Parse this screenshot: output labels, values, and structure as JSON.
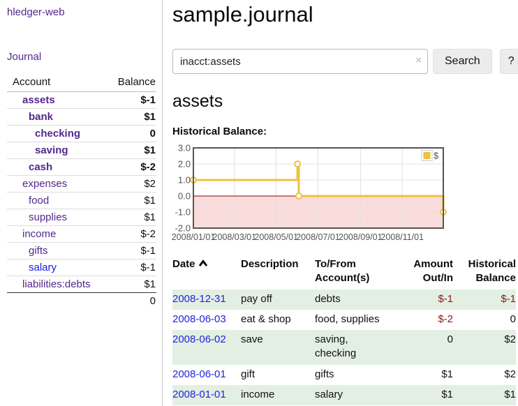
{
  "app": {
    "brand": "hledger-web"
  },
  "sidebar": {
    "nav_journal": "Journal",
    "header": {
      "account": "Account",
      "balance": "Balance"
    },
    "accounts": [
      {
        "name": "assets",
        "indent": 1,
        "bold": true,
        "balance": "$-1",
        "negative": true
      },
      {
        "name": "bank",
        "indent": 2,
        "bold": true,
        "balance": "$1",
        "negative": false
      },
      {
        "name": "checking",
        "indent": 3,
        "bold": true,
        "balance": "0",
        "negative": false
      },
      {
        "name": "saving",
        "indent": 3,
        "bold": true,
        "balance": "$1",
        "negative": false
      },
      {
        "name": "cash",
        "indent": 2,
        "bold": true,
        "balance": "$-2",
        "negative": true
      },
      {
        "name": "expenses",
        "indent": 1,
        "bold": false,
        "balance": "$2",
        "negative": false
      },
      {
        "name": "food",
        "indent": 2,
        "bold": false,
        "balance": "$1",
        "negative": false
      },
      {
        "name": "supplies",
        "indent": 2,
        "bold": false,
        "balance": "$1",
        "negative": false
      },
      {
        "name": "income",
        "indent": 1,
        "bold": false,
        "balance": "$-2",
        "negative": true
      },
      {
        "name": "gifts",
        "indent": 2,
        "bold": false,
        "balance": "$-1",
        "negative": true
      },
      {
        "name": "salary",
        "indent": 2,
        "bold": false,
        "balance": "$-1",
        "negative": true,
        "blue": true
      },
      {
        "name": "liabilities:debts",
        "indent": 1,
        "bold": false,
        "balance": "$1",
        "negative": false
      }
    ],
    "total": "0"
  },
  "header": {
    "title": "sample.journal"
  },
  "search": {
    "value": "inacct:assets",
    "clear_icon": "×",
    "button": "Search",
    "help_button": "?"
  },
  "main": {
    "account_title": "assets"
  },
  "chart_data": {
    "type": "line",
    "step": true,
    "title": "Historical Balance:",
    "legend": {
      "label": "$",
      "position": "top-right"
    },
    "series": [
      {
        "name": "$",
        "color": "#edc240",
        "points": [
          {
            "x": "2008-01-01",
            "y": 1
          },
          {
            "x": "2008-06-01",
            "y": 2
          },
          {
            "x": "2008-06-03",
            "y": 0
          },
          {
            "x": "2008-12-31",
            "y": -1
          }
        ]
      }
    ],
    "x_range": [
      "2008-01-01",
      "2008-12-31"
    ],
    "x_ticks": [
      {
        "date": "2008-01-01",
        "label": "2008/01/01"
      },
      {
        "date": "2008-03-01",
        "label": "2008/03/01"
      },
      {
        "date": "2008-05-01",
        "label": "2008/05/01"
      },
      {
        "date": "2008-07-01",
        "label": "2008/07/01"
      },
      {
        "date": "2008-09-01",
        "label": "2008/09/01"
      },
      {
        "date": "2008-11-01",
        "label": "2008/11/01"
      }
    ],
    "y_ticks": [
      {
        "v": 3,
        "label": "3.0"
      },
      {
        "v": 2,
        "label": "2.0"
      },
      {
        "v": 1,
        "label": "1.0"
      },
      {
        "v": 0,
        "label": "0.0"
      },
      {
        "v": -1,
        "label": "-1.0"
      },
      {
        "v": -2,
        "label": "-2.0"
      }
    ],
    "ylim": [
      -2,
      3
    ],
    "grid": true,
    "negative_fill": "#fadcdc",
    "zero_line_color": "#8b0000",
    "grid_color": "#e0e0e0",
    "border_color": "#545454"
  },
  "transactions": {
    "columns": [
      "Date",
      "Description",
      "To/From Account(s)",
      "Amount Out/In",
      "Historical Balance"
    ],
    "sort": {
      "column": "Date",
      "direction": "asc"
    },
    "rows": [
      {
        "date": "2008-12-31",
        "description": "pay off",
        "accounts": "debts",
        "amount": "$-1",
        "amount_negative": true,
        "balance": "$-1",
        "balance_negative": true
      },
      {
        "date": "2008-06-03",
        "description": "eat & shop",
        "accounts": "food, supplies",
        "amount": "$-2",
        "amount_negative": true,
        "balance": "0",
        "balance_negative": false
      },
      {
        "date": "2008-06-02",
        "description": "save",
        "accounts": "saving, checking",
        "amount": "0",
        "amount_negative": false,
        "balance": "$2",
        "balance_negative": false
      },
      {
        "date": "2008-06-01",
        "description": "gift",
        "accounts": "gifts",
        "amount": "$1",
        "amount_negative": false,
        "balance": "$2",
        "balance_negative": false
      },
      {
        "date": "2008-01-01",
        "description": "income",
        "accounts": "salary",
        "amount": "$1",
        "amount_negative": false,
        "balance": "$1",
        "balance_negative": false
      }
    ]
  },
  "colors": {
    "link_purple": "#54278e",
    "link_blue": "#1a1ae6",
    "date_blue": "#2222dd",
    "negative_bold": "#8b1a1a",
    "negative_soft": "#bb6c70",
    "row_stripe_green": "#e3efe3",
    "chart_gold": "#edc240",
    "chart_negative_fill": "#fadcdc",
    "chart_zero_line": "#8b0000"
  }
}
